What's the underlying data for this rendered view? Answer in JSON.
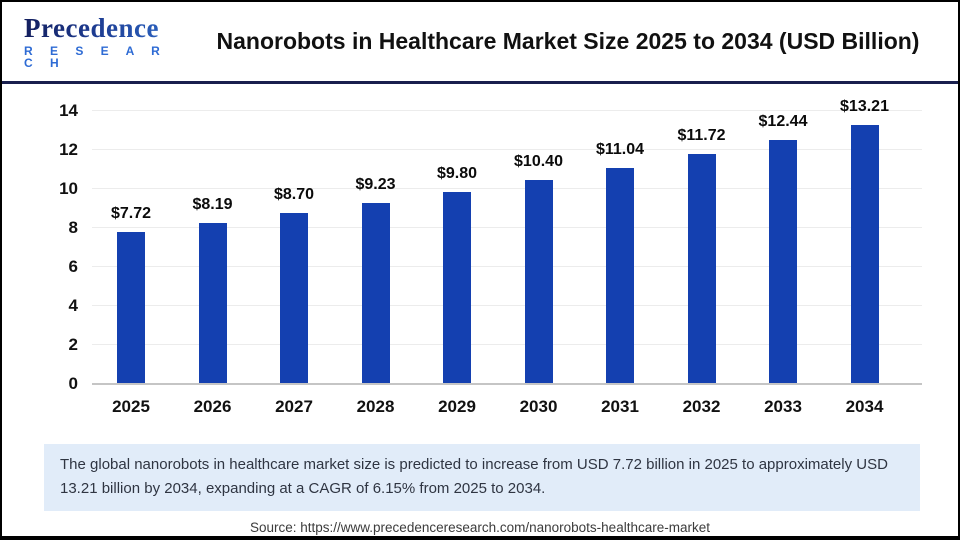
{
  "header": {
    "logo_primary": "Precedence",
    "logo_secondary": "R E S E A R C H",
    "title": "Nanorobots in Healthcare Market Size 2025 to 2034 (USD Billion)"
  },
  "chart_data": {
    "type": "bar",
    "categories": [
      "2025",
      "2026",
      "2027",
      "2028",
      "2029",
      "2030",
      "2031",
      "2032",
      "2033",
      "2034"
    ],
    "values": [
      7.72,
      8.19,
      8.7,
      9.23,
      9.8,
      10.4,
      11.04,
      11.72,
      12.44,
      13.21
    ],
    "data_labels": [
      "$7.72",
      "$8.19",
      "$8.70",
      "$9.23",
      "$9.80",
      "$10.40",
      "$11.04",
      "$11.72",
      "$12.44",
      "$13.21"
    ],
    "title": "Nanorobots in Healthcare Market Size 2025 to 2034 (USD Billion)",
    "xlabel": "",
    "ylabel": "",
    "ylim": [
      0,
      14
    ],
    "yticks": [
      0,
      2,
      4,
      6,
      8,
      10,
      12,
      14
    ],
    "grid": "horizontal",
    "legend_position": "none",
    "bar_color": "#1440b0"
  },
  "footer": {
    "note": "The global nanorobots in healthcare market size is predicted to increase from USD 7.72 billion in 2025 to approximately USD 13.21 billion by 2034, expanding at a CAGR of 6.15% from 2025 to 2034.",
    "source": "Source: https://www.precedenceresearch.com/nanorobots-healthcare-market"
  }
}
